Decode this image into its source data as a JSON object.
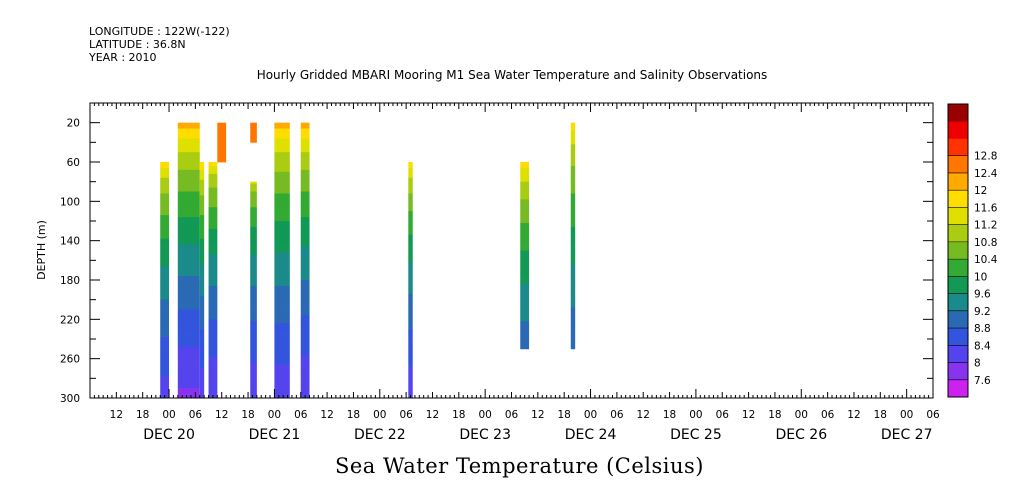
{
  "header": {
    "longitude": "LONGITUDE : 122W(-122)",
    "latitude": "LATITUDE : 36.8N",
    "year": "YEAR : 2010"
  },
  "title": "Hourly Gridded MBARI Mooring M1 Sea Water Temperature and Salinity Observations",
  "footer_label": "Sea Water Temperature (Celsius)",
  "chart_data": {
    "type": "heatmap",
    "title": "Hourly Gridded MBARI Mooring M1 Sea Water Temperature and Salinity Observations",
    "xlabel": "",
    "ylabel": "DEPTH (m)",
    "colorbar_label": "Sea Water Temperature (Celsius)",
    "x_range_hours": [
      6,
      198
    ],
    "y_range_m": [
      0,
      300
    ],
    "y_inverted": true,
    "y_ticks": [
      20,
      60,
      100,
      140,
      180,
      220,
      260,
      300
    ],
    "x_hour_ticks": [
      "12",
      "18",
      "00",
      "06",
      "12",
      "18",
      "00",
      "06",
      "12",
      "18",
      "00",
      "06",
      "12",
      "18",
      "00",
      "06",
      "12",
      "18",
      "00",
      "06",
      "12",
      "18",
      "00",
      "06",
      "12",
      "18",
      "00",
      "06",
      "12",
      "18",
      "00",
      "06"
    ],
    "x_day_labels": [
      "DEC 20",
      "DEC 21",
      "DEC 22",
      "DEC 23",
      "DEC 24",
      "DEC 25",
      "DEC 26",
      "DEC 27"
    ],
    "colorbar_levels": [
      7.6,
      8,
      8.4,
      8.8,
      9.2,
      9.6,
      10,
      10.4,
      10.8,
      11.2,
      11.6,
      12,
      12.4,
      12.8
    ],
    "colorbar_colors": [
      "#cc22ee",
      "#8833f0",
      "#5544ee",
      "#3355dd",
      "#2a6ab5",
      "#1a8a8a",
      "#119955",
      "#33aa33",
      "#77bb22",
      "#aacc11",
      "#e0e000",
      "#ffdd00",
      "#ffaa00",
      "#ff7700",
      "#ff3300",
      "#ee0000",
      "#990000"
    ],
    "observation_blocks": [
      {
        "start_hour": 22.0,
        "end_hour": 24.0,
        "top_depth_m": 60,
        "bottom_depth_m": 300,
        "surface_temp": 12.1,
        "bottom_temp": 8.2
      },
      {
        "start_hour": 26.0,
        "end_hour": 31.0,
        "top_depth_m": 20,
        "bottom_depth_m": 300,
        "surface_temp": 12.6,
        "bottom_temp": 7.9
      },
      {
        "start_hour": 31.0,
        "end_hour": 32.0,
        "top_depth_m": 60,
        "bottom_depth_m": 300,
        "surface_temp": 12.2,
        "bottom_temp": 8.1
      },
      {
        "start_hour": 33.0,
        "end_hour": 35.0,
        "top_depth_m": 60,
        "bottom_depth_m": 300,
        "surface_temp": 12.0,
        "bottom_temp": 8.0
      },
      {
        "start_hour": 35.0,
        "end_hour": 37.0,
        "top_depth_m": 20,
        "bottom_depth_m": 60,
        "surface_temp": 12.5,
        "bottom_temp": 12.3
      },
      {
        "start_hour": 42.5,
        "end_hour": 44.0,
        "top_depth_m": 20,
        "bottom_depth_m": 40,
        "surface_temp": 12.5,
        "bottom_temp": 12.4
      },
      {
        "start_hour": 42.5,
        "end_hour": 44.0,
        "top_depth_m": 80,
        "bottom_depth_m": 300,
        "surface_temp": 11.4,
        "bottom_temp": 8.1
      },
      {
        "start_hour": 48.0,
        "end_hour": 51.5,
        "top_depth_m": 20,
        "bottom_depth_m": 300,
        "surface_temp": 12.5,
        "bottom_temp": 8.1
      },
      {
        "start_hour": 54.0,
        "end_hour": 56.0,
        "top_depth_m": 20,
        "bottom_depth_m": 300,
        "surface_temp": 12.5,
        "bottom_temp": 8.0
      },
      {
        "start_hour": 78.5,
        "end_hour": 79.5,
        "top_depth_m": 60,
        "bottom_depth_m": 300,
        "surface_temp": 12.1,
        "bottom_temp": 8.1
      },
      {
        "start_hour": 104.0,
        "end_hour": 106.0,
        "top_depth_m": 60,
        "bottom_depth_m": 250,
        "surface_temp": 12.1,
        "bottom_temp": 8.5
      },
      {
        "start_hour": 115.5,
        "end_hour": 116.5,
        "top_depth_m": 20,
        "bottom_depth_m": 250,
        "surface_temp": 12.1,
        "bottom_temp": 8.5
      }
    ]
  }
}
